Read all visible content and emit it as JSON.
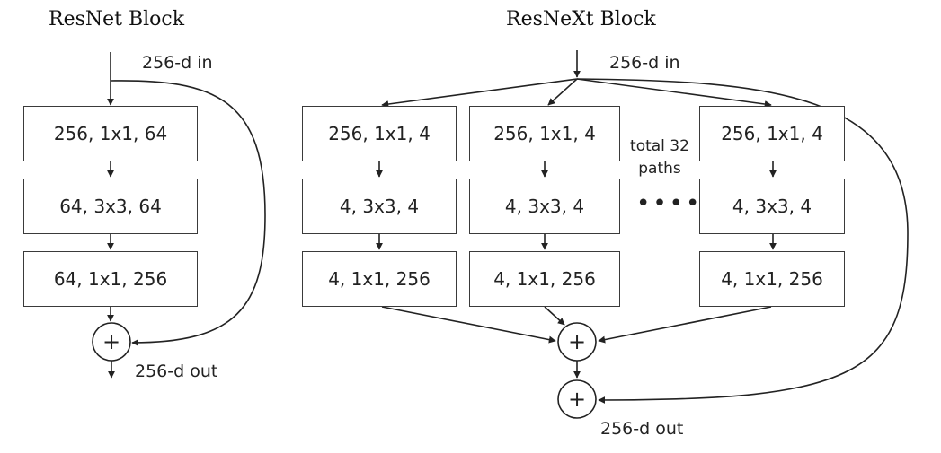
{
  "resnet": {
    "title": "ResNet Block",
    "input_label": "256-d in",
    "output_label": "256-d out",
    "layers": [
      "256, 1x1, 64",
      "64, 3x3, 64",
      "64, 1x1, 256"
    ],
    "sum_symbol": "+"
  },
  "resnext": {
    "title": "ResNeXt Block",
    "input_label": "256-d in",
    "output_label": "256-d out",
    "paths_note_line1": "total 32",
    "paths_note_line2": "paths",
    "ellipsis": "••••",
    "paths": [
      {
        "layers": [
          "256, 1x1, 4",
          "4, 3x3, 4",
          "4, 1x1, 256"
        ]
      },
      {
        "layers": [
          "256, 1x1, 4",
          "4, 3x3, 4",
          "4, 1x1, 256"
        ]
      },
      {
        "layers": [
          "256, 1x1, 4",
          "4, 3x3, 4",
          "4, 1x1, 256"
        ]
      }
    ],
    "sum_symbol": "+",
    "final_sum_symbol": "+"
  }
}
